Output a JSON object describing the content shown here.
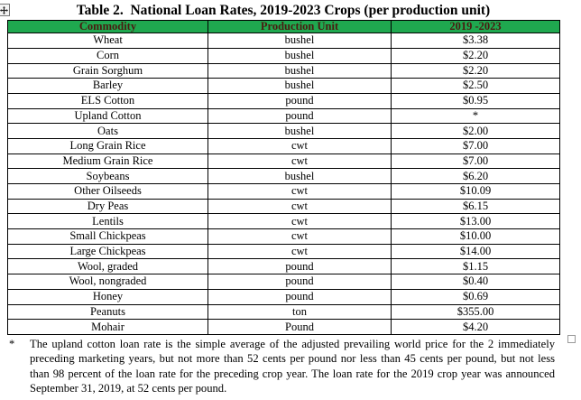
{
  "title": "Table 2.  National Loan Rates, 2019-2023 Crops (per production unit)",
  "colors": {
    "header_bg": "#1FA84F",
    "header_text": "#4A1A10",
    "border": "#000000"
  },
  "table": {
    "headers": [
      "Commodity",
      "Production Unit",
      "2019 -2023"
    ],
    "rows": [
      [
        "Wheat",
        "bushel",
        "$3.38"
      ],
      [
        "Corn",
        "bushel",
        "$2.20"
      ],
      [
        "Grain Sorghum",
        "bushel",
        "$2.20"
      ],
      [
        "Barley",
        "bushel",
        "$2.50"
      ],
      [
        "ELS Cotton",
        "pound",
        "$0.95"
      ],
      [
        "Upland Cotton",
        "pound",
        "*"
      ],
      [
        "Oats",
        "bushel",
        "$2.00"
      ],
      [
        "Long Grain Rice",
        "cwt",
        "$7.00"
      ],
      [
        "Medium Grain Rice",
        "cwt",
        "$7.00"
      ],
      [
        "Soybeans",
        "bushel",
        "$6.20"
      ],
      [
        "Other Oilseeds",
        "cwt",
        "$10.09"
      ],
      [
        "Dry Peas",
        "cwt",
        "$6.15"
      ],
      [
        "Lentils",
        "cwt",
        "$13.00"
      ],
      [
        "Small Chickpeas",
        "cwt",
        "$10.00"
      ],
      [
        "Large Chickpeas",
        "cwt",
        "$14.00"
      ],
      [
        "Wool, graded",
        "pound",
        "$1.15"
      ],
      [
        "Wool, nongraded",
        "pound",
        "$0.40"
      ],
      [
        "Honey",
        "pound",
        "$0.69"
      ],
      [
        "Peanuts",
        "ton",
        "$355.00"
      ],
      [
        "Mohair",
        "Pound",
        "$4.20"
      ]
    ]
  },
  "footnote": {
    "marker": "*",
    "lines": [
      "The upland cotton loan rate is the simple average of the adjusted prevailing world price for the 2 immediately",
      "preceding marketing years, but not more than 52 cents per pound nor less than 45 cents per pound, but not less",
      "than 98 percent of the loan rate for the preceding crop year. The loan rate for the 2019 crop year was announced",
      "September 31, 2019, at 52 cents per pound."
    ]
  },
  "icons": {
    "table_move_handle": "four-way-move-arrow",
    "anchor_square": "empty-square-marker"
  }
}
